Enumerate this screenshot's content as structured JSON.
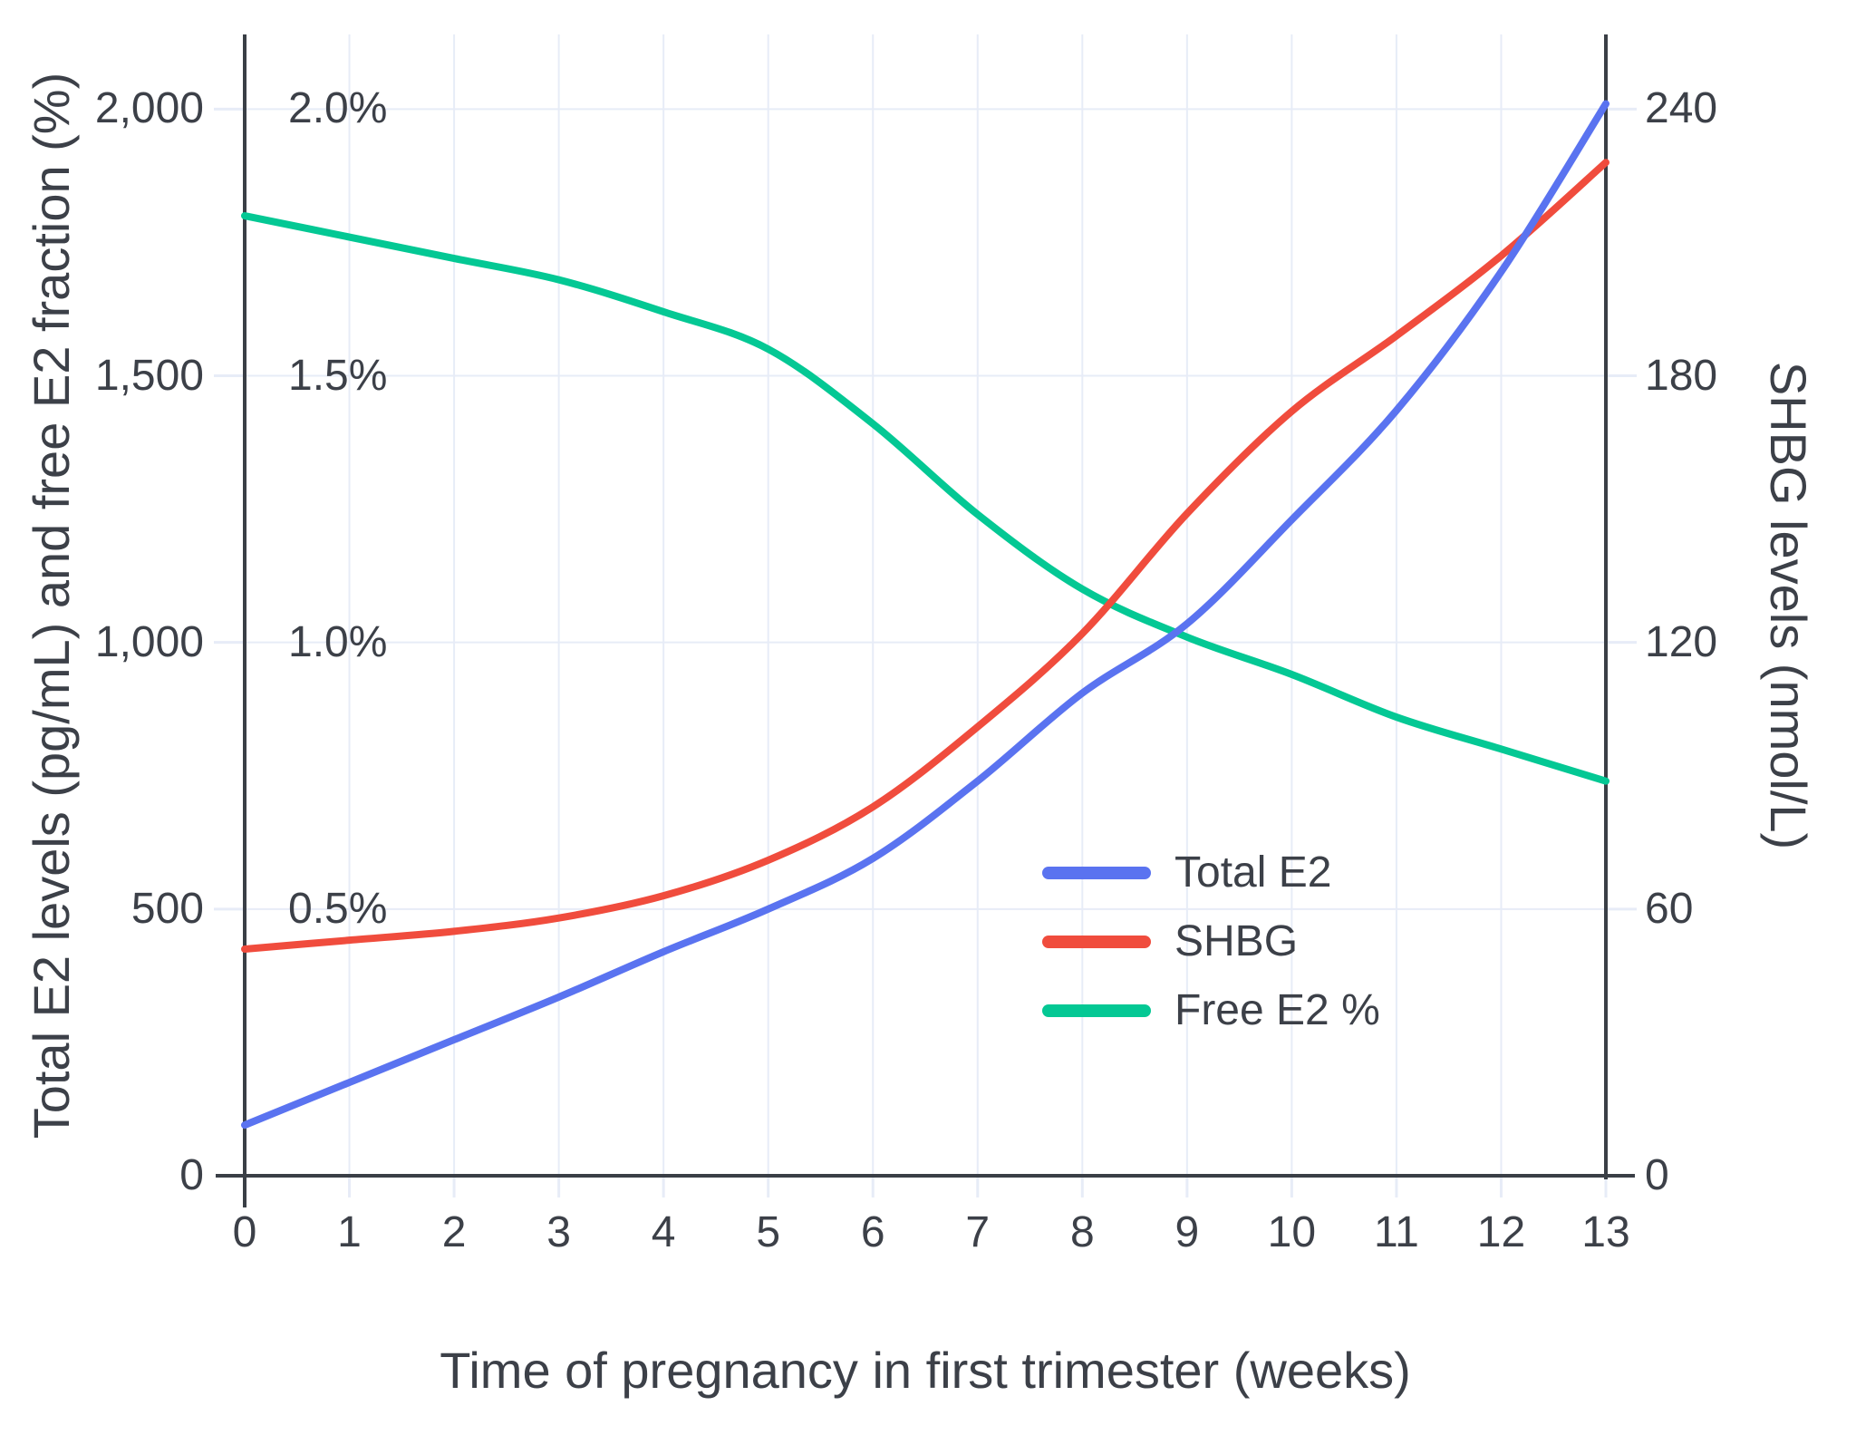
{
  "chart_data": {
    "type": "line",
    "title": "",
    "xlabel": "Time of pregnancy in first trimester (weeks)",
    "ylabel_left": "Total E2 levels (pg/mL) and free E2 fraction (%)",
    "ylabel_right": "SHBG levels (nmol/L)",
    "x": [
      0,
      1,
      2,
      3,
      4,
      5,
      6,
      7,
      8,
      9,
      10,
      11,
      12,
      13
    ],
    "xlim": [
      0,
      13
    ],
    "ylim_left": [
      0,
      2140
    ],
    "ylim_right": [
      0,
      257
    ],
    "grid": true,
    "x_ticks": {
      "values": [
        0,
        1,
        2,
        3,
        4,
        5,
        6,
        7,
        8,
        9,
        10,
        11,
        12,
        13
      ],
      "labels": [
        "0",
        "1",
        "2",
        "3",
        "4",
        "5",
        "6",
        "7",
        "8",
        "9",
        "10",
        "11",
        "12",
        "13"
      ]
    },
    "left_ticks": {
      "values": [
        0,
        500,
        1000,
        1500,
        2000
      ],
      "labels": [
        "0",
        "500",
        "1,000",
        "1,500",
        "2,000"
      ]
    },
    "percent_ticks": {
      "values": [
        0.5,
        1.0,
        1.5,
        2.0
      ],
      "labels": [
        "0.5%",
        "1.0%",
        "1.5%",
        "2.0%"
      ]
    },
    "right_ticks": {
      "values": [
        0,
        60,
        120,
        180,
        240
      ],
      "labels": [
        "0",
        "60",
        "120",
        "180",
        "240"
      ]
    },
    "series": [
      {
        "name": "Total E2",
        "axis": "left",
        "unit": "pg/mL",
        "color": "#5A73F0",
        "values": [
          95,
          175,
          255,
          335,
          420,
          500,
          595,
          740,
          905,
          1035,
          1230,
          1435,
          1695,
          2010
        ]
      },
      {
        "name": "SHBG",
        "axis": "right",
        "unit": "nmol/L",
        "color": "#F04C3D",
        "values": [
          51,
          53,
          55,
          58,
          63,
          71,
          83,
          101,
          122,
          149,
          172,
          189,
          207,
          228
        ]
      },
      {
        "name": "Free E2 %",
        "axis": "left-percent",
        "unit": "%",
        "values_scale_note": "percent read on left axis where 1.0% aligns with 1,000",
        "color": "#04C894",
        "values": [
          1.8,
          1.76,
          1.72,
          1.68,
          1.62,
          1.55,
          1.41,
          1.24,
          1.1,
          1.01,
          0.94,
          0.86,
          0.8,
          0.74
        ]
      }
    ],
    "legend": {
      "position": "inside lower right of plot",
      "entries": [
        "Total E2",
        "SHBG",
        "Free E2 %"
      ]
    }
  },
  "styles": {
    "background": "#FFFFFF",
    "axis_color": "#3A3F46",
    "label_color": "#3C4048",
    "grid_color": "#E7ECF7",
    "series_colors": {
      "total_e2": "#5A73F0",
      "shbg": "#F04C3D",
      "free_e2_pct": "#04C894"
    }
  }
}
